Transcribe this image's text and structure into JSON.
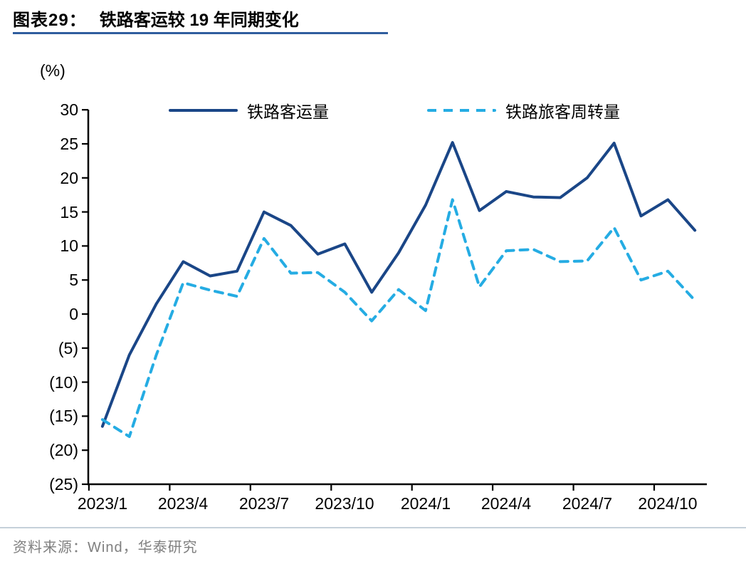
{
  "header": {
    "title_label": "图表29：",
    "title_text": "铁路客运较 19 年同期变化"
  },
  "chart": {
    "unit_label": "(%)",
    "y_tick_labels": [
      "30",
      "25",
      "20",
      "15",
      "10",
      "5",
      "0",
      "(5)",
      "(10)",
      "(15)",
      "(20)",
      "(25)"
    ],
    "x_tick_labels": [
      "2023/1",
      "2023/4",
      "2023/7",
      "2023/10",
      "2024/1",
      "2024/4",
      "2024/7",
      "2024/10"
    ],
    "legend": [
      {
        "label": "铁路客运量"
      },
      {
        "label": "铁路旅客周转量"
      }
    ]
  },
  "chart_data": {
    "type": "line",
    "title": "铁路客运较 19 年同期变化",
    "ylabel": "(%)",
    "xlabel": "",
    "ylim": [
      -25,
      30
    ],
    "y_ticks": [
      30,
      25,
      20,
      15,
      10,
      5,
      0,
      -5,
      -10,
      -15,
      -20,
      -25
    ],
    "grid": false,
    "legend_position": "top",
    "x": [
      "2023/1",
      "2023/2",
      "2023/3",
      "2023/4",
      "2023/5",
      "2023/6",
      "2023/7",
      "2023/8",
      "2023/9",
      "2023/10",
      "2023/11",
      "2023/12",
      "2024/1",
      "2024/2",
      "2024/3",
      "2024/4",
      "2024/5",
      "2024/6",
      "2024/7",
      "2024/8",
      "2024/9",
      "2024/10",
      "2024/11"
    ],
    "x_axis_labels_shown": [
      "2023/1",
      "2023/4",
      "2023/7",
      "2023/10",
      "2024/1",
      "2024/4",
      "2024/7",
      "2024/10"
    ],
    "series": [
      {
        "name": "铁路客运量",
        "style": "solid",
        "color": "#1A4687",
        "values": [
          -16.5,
          -6.0,
          1.5,
          7.7,
          5.6,
          6.3,
          15.0,
          13.0,
          8.8,
          10.3,
          3.2,
          9.0,
          16.0,
          25.2,
          15.2,
          18.0,
          17.2,
          17.1,
          20.0,
          25.1,
          14.4,
          16.8,
          12.3
        ]
      },
      {
        "name": "铁路旅客周转量",
        "style": "dashed",
        "color": "#25ACE3",
        "values": [
          -15.5,
          -18.0,
          -6.0,
          4.6,
          3.5,
          2.6,
          11.1,
          6.0,
          6.1,
          3.2,
          -1.0,
          3.6,
          0.5,
          16.8,
          4.0,
          9.3,
          9.5,
          7.7,
          7.8,
          12.7,
          5.0,
          6.3,
          2.0
        ]
      }
    ]
  },
  "colors": {
    "series_solid": "#1A4687",
    "series_dashed": "#25ACE3",
    "title_underline": "#2F5D9E",
    "axis": "#000000",
    "footer_divider": "#C5D0DA",
    "source_text": "#7F7F7F"
  },
  "footer": {
    "source": "资料来源：Wind，华泰研究"
  }
}
